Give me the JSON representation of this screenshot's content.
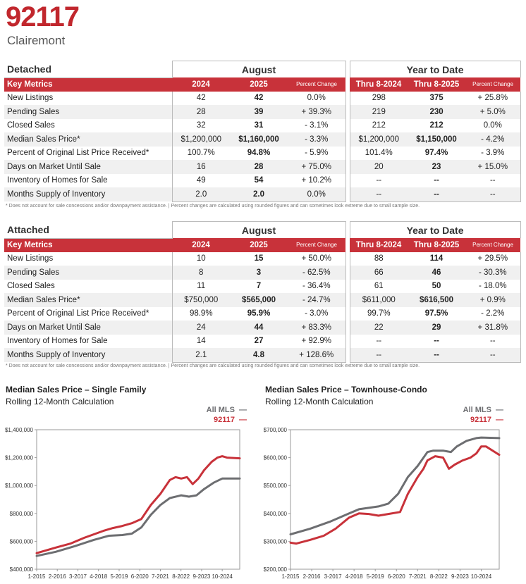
{
  "header": {
    "zip": "92117",
    "area": "Clairemont"
  },
  "detached": {
    "section_title": "Detached",
    "group1": "August",
    "group2": "Year to Date",
    "columns": [
      "Key Metrics",
      "2024",
      "2025",
      "Percent Change",
      "Thru 8-2024",
      "Thru 8-2025",
      "Percent Change"
    ],
    "rows": [
      [
        "New Listings",
        "42",
        "42",
        "0.0%",
        "298",
        "375",
        "+ 25.8%"
      ],
      [
        "Pending Sales",
        "28",
        "39",
        "+ 39.3%",
        "219",
        "230",
        "+ 5.0%"
      ],
      [
        "Closed Sales",
        "32",
        "31",
        "- 3.1%",
        "212",
        "212",
        "0.0%"
      ],
      [
        "Median Sales Price*",
        "$1,200,000",
        "$1,160,000",
        "- 3.3%",
        "$1,200,000",
        "$1,150,000",
        "- 4.2%"
      ],
      [
        "Percent of Original List Price Received*",
        "100.7%",
        "94.8%",
        "- 5.9%",
        "101.4%",
        "97.4%",
        "- 3.9%"
      ],
      [
        "Days on Market Until Sale",
        "16",
        "28",
        "+ 75.0%",
        "20",
        "23",
        "+ 15.0%"
      ],
      [
        "Inventory of Homes for Sale",
        "49",
        "54",
        "+ 10.2%",
        "--",
        "--",
        "--"
      ],
      [
        "Months Supply of Inventory",
        "2.0",
        "2.0",
        "0.0%",
        "--",
        "--",
        "--"
      ]
    ],
    "footnote": "* Does not account for sale concessions and/or downpayment assistance.  |  Percent changes are calculated using rounded figures and can sometimes look extreme due to small sample size."
  },
  "attached": {
    "section_title": "Attached",
    "group1": "August",
    "group2": "Year to Date",
    "columns": [
      "Key Metrics",
      "2024",
      "2025",
      "Percent Change",
      "Thru 8-2024",
      "Thru 8-2025",
      "Percent Change"
    ],
    "rows": [
      [
        "New Listings",
        "10",
        "15",
        "+ 50.0%",
        "88",
        "114",
        "+ 29.5%"
      ],
      [
        "Pending Sales",
        "8",
        "3",
        "- 62.5%",
        "66",
        "46",
        "- 30.3%"
      ],
      [
        "Closed Sales",
        "11",
        "7",
        "- 36.4%",
        "61",
        "50",
        "- 18.0%"
      ],
      [
        "Median Sales Price*",
        "$750,000",
        "$565,000",
        "- 24.7%",
        "$611,000",
        "$616,500",
        "+ 0.9%"
      ],
      [
        "Percent of Original List Price Received*",
        "98.9%",
        "95.9%",
        "- 3.0%",
        "99.7%",
        "97.5%",
        "- 2.2%"
      ],
      [
        "Days on Market Until Sale",
        "24",
        "44",
        "+ 83.3%",
        "22",
        "29",
        "+ 31.8%"
      ],
      [
        "Inventory of Homes for Sale",
        "14",
        "27",
        "+ 92.9%",
        "--",
        "--",
        "--"
      ],
      [
        "Months Supply of Inventory",
        "2.1",
        "4.8",
        "+ 128.6%",
        "--",
        "--",
        "--"
      ]
    ],
    "footnote": "* Does not account for sale concessions and/or downpayment assistance.  |  Percent changes are calculated using rounded figures and can sometimes look extreme due to small sample size."
  },
  "colors": {
    "accent": "#c8323a",
    "all_mls": "#6d6e71",
    "zip_line": "#c8323a"
  },
  "chart_data": [
    {
      "type": "line",
      "title": "Median Sales Price – Single Family",
      "subtitle": "Rolling 12-Month Calculation",
      "ylim": [
        400000,
        1400000
      ],
      "yticks": [
        "$400,000",
        "$600,000",
        "$800,000",
        "$1,000,000",
        "$1,200,000",
        "$1,400,000"
      ],
      "ytick_values": [
        400000,
        600000,
        800000,
        1000000,
        1200000,
        1400000
      ],
      "xticks": [
        "1-2015",
        "2-2016",
        "3-2017",
        "4-2018",
        "5-2019",
        "6-2020",
        "7-2021",
        "8-2022",
        "9-2023",
        "10-2024"
      ],
      "x_range": [
        2015.0,
        2025.67
      ],
      "xtick_positions": [
        2015.0,
        2016.083,
        2017.167,
        2018.25,
        2019.333,
        2020.417,
        2021.5,
        2022.583,
        2023.667,
        2024.75
      ],
      "series": [
        {
          "name": "All MLS",
          "color": "#6d6e71",
          "x": [
            2015.0,
            2016.0,
            2017.0,
            2018.0,
            2018.8,
            2019.5,
            2020.0,
            2020.5,
            2021.0,
            2021.5,
            2022.0,
            2022.6,
            2023.0,
            2023.4,
            2023.8,
            2024.3,
            2024.75,
            2025.67
          ],
          "values": [
            495000,
            525000,
            565000,
            610000,
            640000,
            645000,
            655000,
            700000,
            790000,
            860000,
            910000,
            930000,
            920000,
            930000,
            975000,
            1020000,
            1050000,
            1050000
          ]
        },
        {
          "name": "92117",
          "color": "#c8323a",
          "x": [
            2015.0,
            2016.0,
            2016.8,
            2017.5,
            2018.5,
            2019.0,
            2019.5,
            2020.0,
            2020.5,
            2021.0,
            2021.5,
            2022.0,
            2022.3,
            2022.6,
            2022.9,
            2023.2,
            2023.5,
            2023.8,
            2024.2,
            2024.5,
            2024.75,
            2025.0,
            2025.67
          ],
          "values": [
            515000,
            555000,
            585000,
            625000,
            675000,
            695000,
            710000,
            730000,
            760000,
            860000,
            940000,
            1040000,
            1060000,
            1050000,
            1060000,
            1010000,
            1050000,
            1110000,
            1170000,
            1200000,
            1210000,
            1200000,
            1195000
          ]
        }
      ],
      "legend": [
        "All MLS",
        "92117"
      ]
    },
    {
      "type": "line",
      "title": "Median Sales Price – Townhouse-Condo",
      "subtitle": "Rolling 12-Month Calculation",
      "ylim": [
        200000,
        700000
      ],
      "yticks": [
        "$200,000",
        "$300,000",
        "$400,000",
        "$500,000",
        "$600,000",
        "$700,000"
      ],
      "ytick_values": [
        200000,
        300000,
        400000,
        500000,
        600000,
        700000
      ],
      "xticks": [
        "1-2015",
        "2-2016",
        "3-2017",
        "4-2018",
        "5-2019",
        "6-2020",
        "7-2021",
        "8-2022",
        "9-2023",
        "10-2024"
      ],
      "x_range": [
        2015.0,
        2025.67
      ],
      "xtick_positions": [
        2015.0,
        2016.083,
        2017.167,
        2018.25,
        2019.333,
        2020.417,
        2021.5,
        2022.583,
        2023.667,
        2024.75
      ],
      "series": [
        {
          "name": "All MLS",
          "color": "#6d6e71",
          "x": [
            2015.0,
            2016.0,
            2017.0,
            2018.0,
            2018.5,
            2019.0,
            2019.5,
            2020.0,
            2020.5,
            2021.0,
            2021.5,
            2022.0,
            2022.3,
            2022.8,
            2023.2,
            2023.5,
            2024.0,
            2024.5,
            2024.75,
            2025.67
          ],
          "values": [
            325000,
            345000,
            370000,
            400000,
            415000,
            420000,
            425000,
            435000,
            470000,
            530000,
            570000,
            620000,
            625000,
            625000,
            620000,
            640000,
            660000,
            670000,
            672000,
            670000
          ]
        },
        {
          "name": "92117",
          "color": "#c8323a",
          "x": [
            2015.0,
            2015.3,
            2016.0,
            2016.7,
            2017.3,
            2018.0,
            2018.5,
            2019.0,
            2019.5,
            2020.0,
            2020.6,
            2021.0,
            2021.5,
            2021.8,
            2022.0,
            2022.4,
            2022.8,
            2023.1,
            2023.4,
            2023.8,
            2024.2,
            2024.5,
            2024.75,
            2025.0,
            2025.67
          ],
          "values": [
            295000,
            292000,
            305000,
            320000,
            345000,
            385000,
            400000,
            398000,
            392000,
            398000,
            405000,
            470000,
            530000,
            560000,
            590000,
            605000,
            600000,
            560000,
            575000,
            590000,
            600000,
            615000,
            640000,
            640000,
            610000
          ]
        }
      ],
      "legend": [
        "All MLS",
        "92117"
      ]
    }
  ]
}
